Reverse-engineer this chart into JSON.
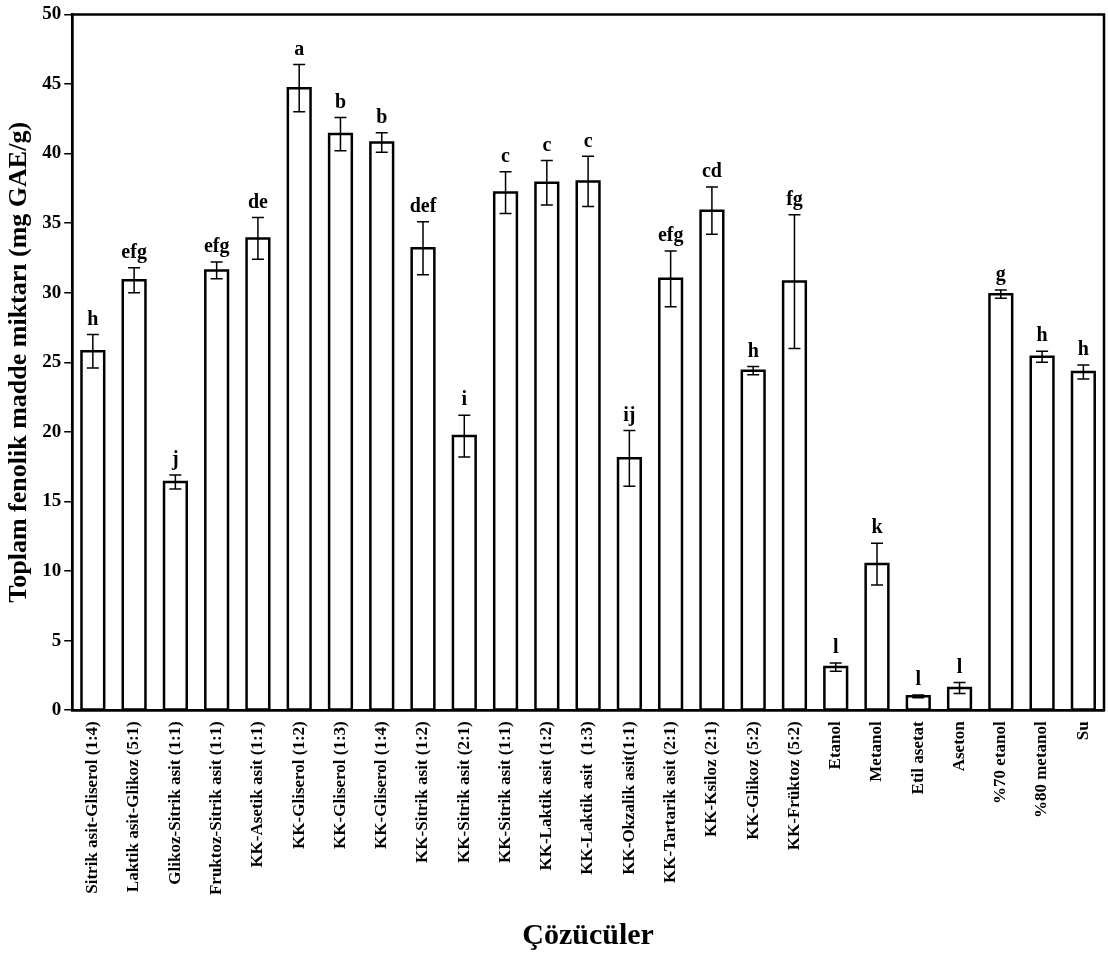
{
  "chart_data": {
    "type": "bar",
    "xlabel": "Çözücüler",
    "ylabel": "Toplam fenolik madde miktarı (mg GAE/g)",
    "categories": [
      "Sitrik asit-Gliserol (1:4)",
      "Laktik asit-Glikoz (5:1)",
      "Glikoz-Sitrik asit (1:1)",
      "Fruktoz-Sitrik asit (1:1)",
      "KK-Asetik asit (1:1)",
      "KK-Gliserol (1:2)",
      "KK-Gliserol (1:3)",
      "KK-Gliserol (1:4)",
      "KK-Sitrik asit (1:2)",
      "KK-Sitrik asit (2:1)",
      "KK-Sitrik asit (1:1)",
      "KK-Laktik asit (1:2)",
      "KK-Laktik asit  (1:3)",
      "KK-Okzalik asit(1:1)",
      "KK-Tartarik asit (2:1)",
      "KK-Ksiloz (2:1)",
      "KK-Glikoz (5:2)",
      "KK-Früktoz (5:2)",
      "Etanol",
      "Metanol",
      "Etil asetat",
      "Aseton",
      "%70 etanol",
      "%80 metanol",
      "Su"
    ],
    "values": [
      25.8,
      30.9,
      16.4,
      31.6,
      33.9,
      44.7,
      41.4,
      40.8,
      33.2,
      19.7,
      37.2,
      37.9,
      38.0,
      18.1,
      31.0,
      35.9,
      24.4,
      30.8,
      3.1,
      10.5,
      1.0,
      1.6,
      29.9,
      25.4,
      24.3
    ],
    "errors": [
      1.2,
      0.9,
      0.5,
      0.6,
      1.5,
      1.7,
      1.2,
      0.7,
      1.9,
      1.5,
      1.5,
      1.6,
      1.8,
      2.0,
      2.0,
      1.7,
      0.3,
      4.8,
      0.3,
      1.5,
      0.1,
      0.4,
      0.3,
      0.4,
      0.5
    ],
    "color": "#ffffff",
    "ylim": [
      0,
      50
    ],
    "yticks": [
      0,
      5,
      10,
      15,
      20,
      25,
      30,
      35,
      40,
      45,
      50
    ],
    "grid": false,
    "annotations": [
      {
        "text": "h",
        "x": "Sitrik asit-Gliserol (1:4)",
        "y": 27.0
      },
      {
        "text": "efg",
        "x": "Laktik asit-Glikoz (5:1)",
        "y": 31.8
      },
      {
        "text": "j",
        "x": "Glikoz-Sitrik asit (1:1)",
        "y": 16.9
      },
      {
        "text": "efg",
        "x": "Fruktoz-Sitrik asit (1:1)",
        "y": 32.2
      },
      {
        "text": "de",
        "x": "KK-Asetik asit (1:1)",
        "y": 35.4
      },
      {
        "text": "a",
        "x": "KK-Gliserol (1:2)",
        "y": 46.4
      },
      {
        "text": "b",
        "x": "KK-Gliserol (1:3)",
        "y": 42.6
      },
      {
        "text": "b",
        "x": "KK-Gliserol (1:4)",
        "y": 41.5
      },
      {
        "text": "def",
        "x": "KK-Sitrik asit (1:2)",
        "y": 35.1
      },
      {
        "text": "i",
        "x": "KK-Sitrik asit (2:1)",
        "y": 21.2
      },
      {
        "text": "c",
        "x": "KK-Sitrik asit (1:1)",
        "y": 38.7
      },
      {
        "text": "c",
        "x": "KK-Laktik asit (1:2)",
        "y": 39.5
      },
      {
        "text": "c",
        "x": "KK-Laktik asit  (1:3)",
        "y": 39.8
      },
      {
        "text": "ij",
        "x": "KK-Okzalik asit(1:1)",
        "y": 20.1
      },
      {
        "text": "efg",
        "x": "KK-Tartarik asit (2:1)",
        "y": 33.0
      },
      {
        "text": "cd",
        "x": "KK-Ksiloz (2:1)",
        "y": 37.6
      },
      {
        "text": "h",
        "x": "KK-Glikoz (5:2)",
        "y": 24.7
      },
      {
        "text": "fg",
        "x": "KK-Früktoz (5:2)",
        "y": 35.6
      },
      {
        "text": "l",
        "x": "Etanol",
        "y": 3.4
      },
      {
        "text": "k",
        "x": "Metanol",
        "y": 12.0
      },
      {
        "text": "l",
        "x": "Etil asetat",
        "y": 1.1
      },
      {
        "text": "l",
        "x": "Aseton",
        "y": 2.0
      },
      {
        "text": "g",
        "x": "%70 etanol",
        "y": 30.2
      },
      {
        "text": "h",
        "x": "%80 metanol",
        "y": 25.8
      },
      {
        "text": "h",
        "x": "Su",
        "y": 24.8
      }
    ]
  }
}
